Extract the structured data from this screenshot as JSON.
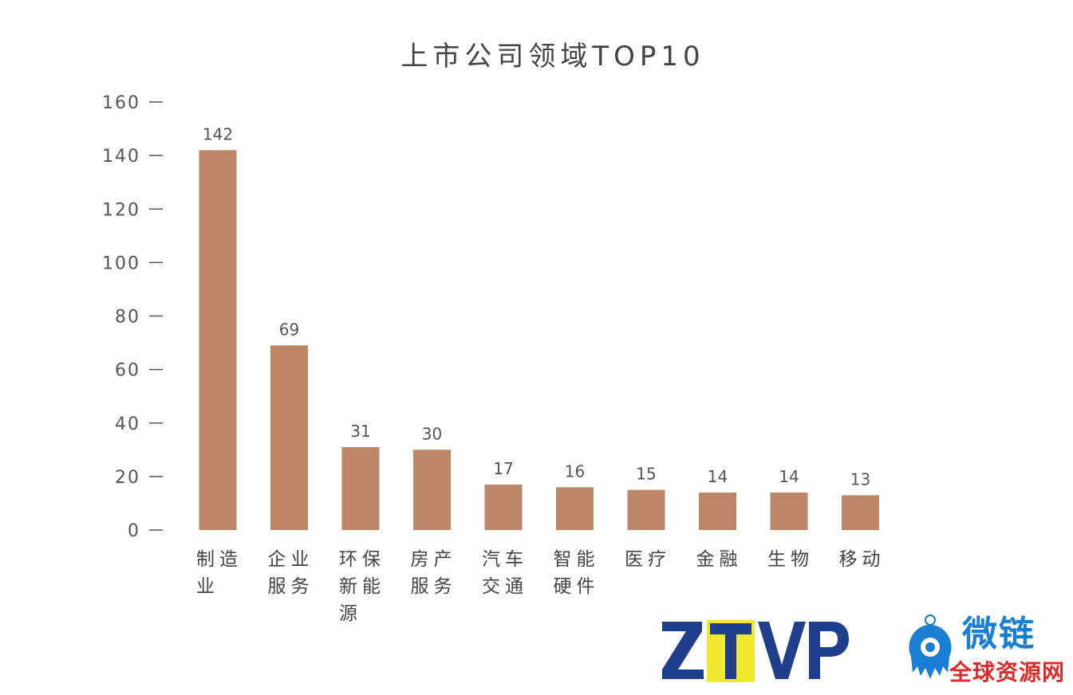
{
  "chart_data": {
    "type": "bar",
    "title": "上市公司领域TOP10",
    "categories": [
      "制造业",
      "企业服务",
      "环保新能源",
      "房产服务",
      "汽车交通",
      "智能硬件",
      "医疗",
      "金融",
      "生物",
      "移动"
    ],
    "values": [
      142,
      69,
      31,
      30,
      17,
      16,
      15,
      14,
      14,
      13
    ],
    "ylim": [
      0,
      160
    ],
    "yticks": [
      0,
      20,
      40,
      60,
      80,
      100,
      120,
      140,
      160
    ],
    "xlabel": "",
    "ylabel": "",
    "grid": false,
    "bar_color": "#bc8767"
  },
  "watermarks": {
    "ztvp": "ZTVP",
    "weilian": "微链",
    "weilian_sub": "全球资源网"
  },
  "colors": {
    "bar": "#bc8767",
    "ztvp_blue": "#1f3e8c",
    "ztvp_yellow": "#f2e830",
    "weilian_blue": "#1a7fd4",
    "weilian_red": "#e02a2a"
  }
}
